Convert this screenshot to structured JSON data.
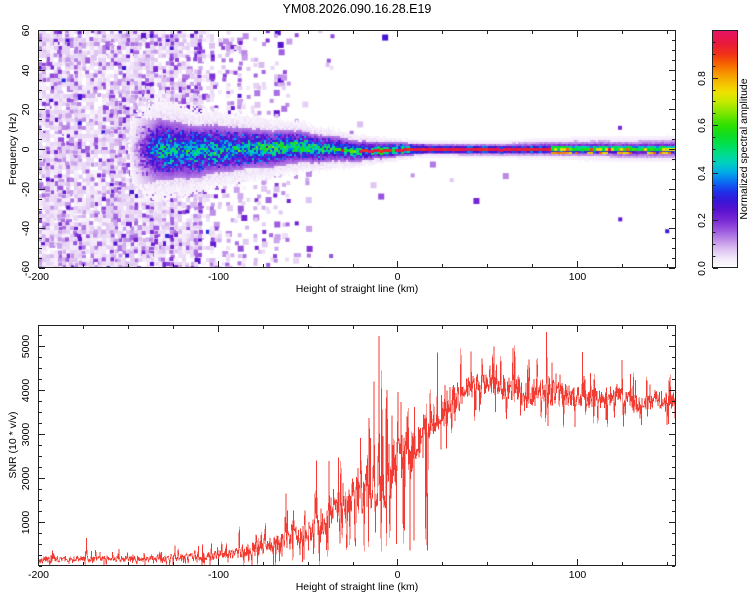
{
  "title": "YM08.2026.090.16.28.E19",
  "chart_data": [
    {
      "type": "heatmap",
      "description": "Radio-meteor style spectrogram: broadband violet noise at negative heights collapsing into a narrow 0 Hz echo line at positive heights",
      "xlabel": "Height of straight line (km)",
      "ylabel": "Frequency (Hz)",
      "xlim": [
        -200,
        155
      ],
      "ylim": [
        -60,
        60
      ],
      "xticks": [
        -200,
        -100,
        0,
        100
      ],
      "xtick_minor_step": 25,
      "yticks": [
        60,
        40,
        20,
        0,
        -20,
        -40,
        -60
      ],
      "ytick_minor_step": 5,
      "grid": false,
      "colorbar": {
        "label": "Normalized spectral amplitude",
        "ticks": [
          0.0,
          0.2,
          0.4,
          0.6,
          0.8
        ],
        "minor_step": 0.05,
        "range": [
          0,
          1
        ]
      },
      "colormap": [
        [
          0.0,
          "#ffffff"
        ],
        [
          0.04,
          "#f3e8fa"
        ],
        [
          0.08,
          "#dcc0f0"
        ],
        [
          0.12,
          "#bb8ae6"
        ],
        [
          0.16,
          "#9955dd"
        ],
        [
          0.2,
          "#7a2ad4"
        ],
        [
          0.24,
          "#5c14cf"
        ],
        [
          0.28,
          "#3a14d6"
        ],
        [
          0.32,
          "#1e30e8"
        ],
        [
          0.36,
          "#0b6af2"
        ],
        [
          0.4,
          "#00a8e8"
        ],
        [
          0.44,
          "#00cfc0"
        ],
        [
          0.48,
          "#00dc8a"
        ],
        [
          0.52,
          "#00e050"
        ],
        [
          0.56,
          "#10dc20"
        ],
        [
          0.6,
          "#30e000"
        ],
        [
          0.65,
          "#7ce600"
        ],
        [
          0.7,
          "#c8ea00"
        ],
        [
          0.74,
          "#eee000"
        ],
        [
          0.78,
          "#f5bc00"
        ],
        [
          0.82,
          "#f69200"
        ],
        [
          0.86,
          "#f66000"
        ],
        [
          0.9,
          "#f03018"
        ],
        [
          0.95,
          "#e81840"
        ],
        [
          1.0,
          "#e6146a"
        ]
      ],
      "model": {
        "noise_density": [
          [
            -200,
            0.5
          ],
          [
            -150,
            0.48
          ],
          [
            -132,
            0.44
          ],
          [
            -122,
            0.32
          ],
          [
            -110,
            0.25
          ],
          [
            -95,
            0.16
          ],
          [
            -80,
            0.11
          ],
          [
            -70,
            0.08
          ],
          [
            -60,
            0.045
          ],
          [
            -45,
            0.022
          ],
          [
            -30,
            0.01
          ],
          [
            0,
            0.004
          ],
          [
            155,
            0.002
          ]
        ],
        "wash_density": [
          [
            -200,
            0.85
          ],
          [
            -125,
            0.8
          ],
          [
            -112,
            0.45
          ],
          [
            -95,
            0.1
          ],
          [
            -80,
            0.0
          ],
          [
            155,
            0.0
          ]
        ],
        "band_halfwidth_hz": [
          [
            -145,
            17
          ],
          [
            -120,
            14
          ],
          [
            -100,
            12
          ],
          [
            -80,
            10
          ],
          [
            -60,
            8.5
          ],
          [
            -45,
            7.2
          ],
          [
            -30,
            5.8
          ],
          [
            -20,
            5.0
          ],
          [
            -10,
            4.2
          ],
          [
            0,
            3.6
          ],
          [
            10,
            2.9
          ],
          [
            60,
            3.0
          ],
          [
            100,
            3.9
          ],
          [
            155,
            4.4
          ]
        ],
        "band_fade_km": [
          -150,
          -132
        ],
        "core_red_prob": [
          [
            -40,
            0.0
          ],
          [
            -33,
            0.2
          ],
          [
            -20,
            0.5
          ],
          [
            -8,
            0.8
          ],
          [
            5,
            1.0
          ],
          [
            85,
            1.0
          ],
          [
            88,
            0.2
          ],
          [
            100,
            0.1
          ],
          [
            155,
            0.08
          ]
        ],
        "centroid_wander_hz": 3.5,
        "streak_columns_km": [
          -138,
          -126,
          -112,
          -96,
          -88,
          -80,
          -74,
          -68,
          -63,
          -57,
          -51
        ]
      }
    },
    {
      "type": "line",
      "xlabel": "Height of straight line (km)",
      "ylabel": "SNR (10 * v/v)",
      "xlim": [
        -200,
        155
      ],
      "ylim": [
        0,
        5480
      ],
      "xticks": [
        -200,
        -100,
        0,
        100
      ],
      "xtick_minor_step": 25,
      "yticks": [
        1000,
        2000,
        3000,
        4000,
        5000
      ],
      "ytick_minor_step": 250,
      "grid": false,
      "line_color": "#f23b32",
      "trend": [
        [
          -200,
          150,
          120
        ],
        [
          -160,
          160,
          120
        ],
        [
          -130,
          180,
          130
        ],
        [
          -110,
          210,
          150
        ],
        [
          -95,
          260,
          180
        ],
        [
          -85,
          320,
          220
        ],
        [
          -75,
          420,
          280
        ],
        [
          -65,
          520,
          340
        ],
        [
          -55,
          700,
          420
        ],
        [
          -47,
          850,
          500
        ],
        [
          -40,
          1050,
          600
        ],
        [
          -33,
          1350,
          750
        ],
        [
          -27,
          1600,
          850
        ],
        [
          -20,
          1750,
          950
        ],
        [
          -14,
          1900,
          1100
        ],
        [
          -10,
          2050,
          1300
        ],
        [
          -6,
          2100,
          1300
        ],
        [
          -2,
          2250,
          1100
        ],
        [
          2,
          2450,
          1000
        ],
        [
          6,
          2600,
          950
        ],
        [
          10,
          2750,
          900
        ],
        [
          14,
          2950,
          800
        ],
        [
          18,
          3200,
          750
        ],
        [
          24,
          3500,
          650
        ],
        [
          30,
          3750,
          600
        ],
        [
          36,
          3900,
          550
        ],
        [
          42,
          4050,
          500
        ],
        [
          48,
          4150,
          480
        ],
        [
          54,
          4150,
          460
        ],
        [
          60,
          4050,
          470
        ],
        [
          66,
          3950,
          500
        ],
        [
          72,
          3900,
          520
        ],
        [
          78,
          3950,
          540
        ],
        [
          84,
          4000,
          560
        ],
        [
          90,
          3900,
          480
        ],
        [
          96,
          3850,
          440
        ],
        [
          102,
          3850,
          440
        ],
        [
          108,
          3800,
          420
        ],
        [
          114,
          3800,
          420
        ],
        [
          120,
          3850,
          400
        ],
        [
          126,
          3800,
          420
        ],
        [
          132,
          3700,
          420
        ],
        [
          138,
          3750,
          380
        ],
        [
          144,
          3800,
          360
        ],
        [
          150,
          3750,
          360
        ],
        [
          155,
          3800,
          340
        ]
      ],
      "spikes": [
        [
          -173,
          640
        ],
        [
          -88,
          900
        ],
        [
          -62,
          1650
        ],
        [
          -45,
          2400
        ],
        [
          -10.2,
          5230
        ],
        [
          41,
          4880
        ],
        [
          83,
          5320
        ],
        [
          103,
          4870
        ],
        [
          125,
          4680
        ]
      ]
    }
  ],
  "layout_note": "two stacked panels sharing the height axis"
}
